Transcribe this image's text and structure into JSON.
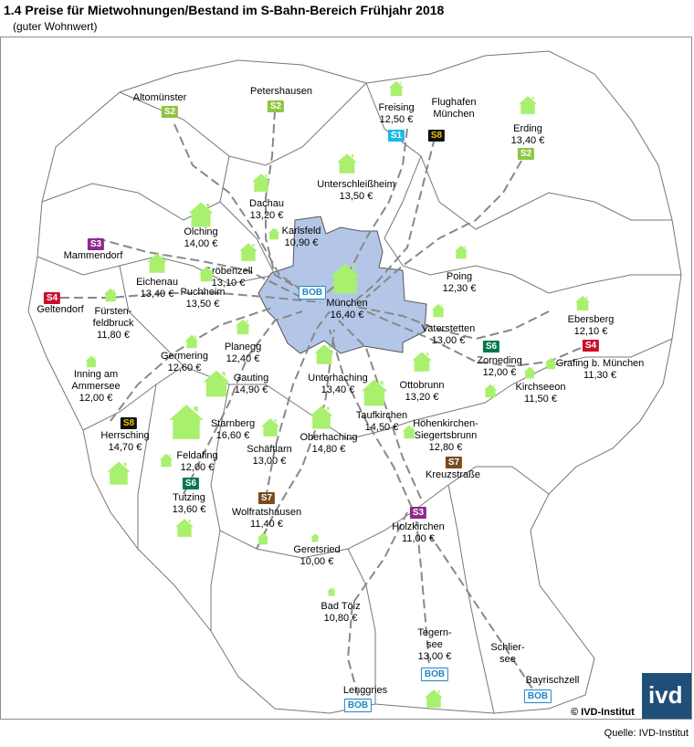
{
  "title": "1.4 Preise für Mietwohnungen/Bestand im S-Bahn-Bereich Frühjahr 2018",
  "subtitle": "(guter Wohnwert)",
  "copyright": "© IVD-Institut",
  "source": "Quelle: IVD-Institut",
  "logo_text": "ivd",
  "colors": {
    "S1": "#1ab8e8",
    "S2": "#8dc63f",
    "S3": "#8e2a8e",
    "S4": "#c8102e",
    "S6": "#00794a",
    "S7": "#7a4a1e",
    "S8": "#111111",
    "BOB": "#1f86c6",
    "city": "#b4c6e7",
    "house": "#a9f06e"
  },
  "places": [
    {
      "name": "Altomünster",
      "price": ""
    },
    {
      "name": "Petershausen",
      "price": ""
    },
    {
      "name": "Freising",
      "price": "12,50 €"
    },
    {
      "name": "Flughafen\nMünchen",
      "price": ""
    },
    {
      "name": "Erding",
      "price": "13,40 €"
    },
    {
      "name": "Unterschleißheim",
      "price": "13,50 €"
    },
    {
      "name": "Dachau",
      "price": "13,20 €"
    },
    {
      "name": "Karlsfeld",
      "price": "10,90 €"
    },
    {
      "name": "Olching",
      "price": "14,00 €"
    },
    {
      "name": "Mammendorf",
      "price": ""
    },
    {
      "name": "Eichenau",
      "price": "13,40 €"
    },
    {
      "name": "Gröbenzell",
      "price": "13,10 €"
    },
    {
      "name": "Puchheim",
      "price": "13,50 €"
    },
    {
      "name": "Geltendorf",
      "price": ""
    },
    {
      "name": "Fürsten-\nfeldbruck",
      "price": "11,80 €"
    },
    {
      "name": "München",
      "price": "16,40 €"
    },
    {
      "name": "Poing",
      "price": "12,30 €"
    },
    {
      "name": "Vaterstetten",
      "price": "13,00 €"
    },
    {
      "name": "Ebersberg",
      "price": "12,10 €"
    },
    {
      "name": "Zorneding",
      "price": "12,00 €"
    },
    {
      "name": "Grafing b. München",
      "price": "11,30 €"
    },
    {
      "name": "Kirchseeon",
      "price": "11,50 €"
    },
    {
      "name": "Germering",
      "price": "12,60 €"
    },
    {
      "name": "Planegg",
      "price": "12,40 €"
    },
    {
      "name": "Gauting",
      "price": "14,90 €"
    },
    {
      "name": "Inning am\nAmmersee",
      "price": "12,00 €"
    },
    {
      "name": "Unterhaching",
      "price": "13,40 €"
    },
    {
      "name": "Ottobrunn",
      "price": "13,20 €"
    },
    {
      "name": "Taufkirchen",
      "price": "14,50 €"
    },
    {
      "name": "Höhenkirchen-\nSiegertsbrunn",
      "price": "12,80 €"
    },
    {
      "name": "Kreuzstraße",
      "price": ""
    },
    {
      "name": "Herrsching",
      "price": "14,70 €"
    },
    {
      "name": "Starnberg",
      "price": "16,60 €"
    },
    {
      "name": "Oberhaching",
      "price": "14,80 €"
    },
    {
      "name": "Schäftlarn",
      "price": "13,00 €"
    },
    {
      "name": "Feldafing",
      "price": "12,00 €"
    },
    {
      "name": "Tutzing",
      "price": "13,60 €"
    },
    {
      "name": "Wolfratshausen",
      "price": "11,40 €"
    },
    {
      "name": "Holzkirchen",
      "price": "11,00 €"
    },
    {
      "name": "Geretsried",
      "price": "10,00 €"
    },
    {
      "name": "Bad Tölz",
      "price": "10,80 €"
    },
    {
      "name": "Tegern-\nsee",
      "price": "13,00 €"
    },
    {
      "name": "Schlier-\nsee",
      "price": ""
    },
    {
      "name": "Bayrischzell",
      "price": ""
    },
    {
      "name": "Lenggries",
      "price": ""
    }
  ],
  "badges": [
    {
      "line": "S2"
    },
    {
      "line": "S2"
    },
    {
      "line": "S1"
    },
    {
      "line": "S8"
    },
    {
      "line": "S2"
    },
    {
      "line": "S3"
    },
    {
      "line": "S4"
    },
    {
      "line": "BOB"
    },
    {
      "line": "S6"
    },
    {
      "line": "S4"
    },
    {
      "line": "S8"
    },
    {
      "line": "S7"
    },
    {
      "line": "S6"
    },
    {
      "line": "S7"
    },
    {
      "line": "S3"
    },
    {
      "line": "BOB"
    },
    {
      "line": "BOB"
    },
    {
      "line": "BOB"
    }
  ]
}
